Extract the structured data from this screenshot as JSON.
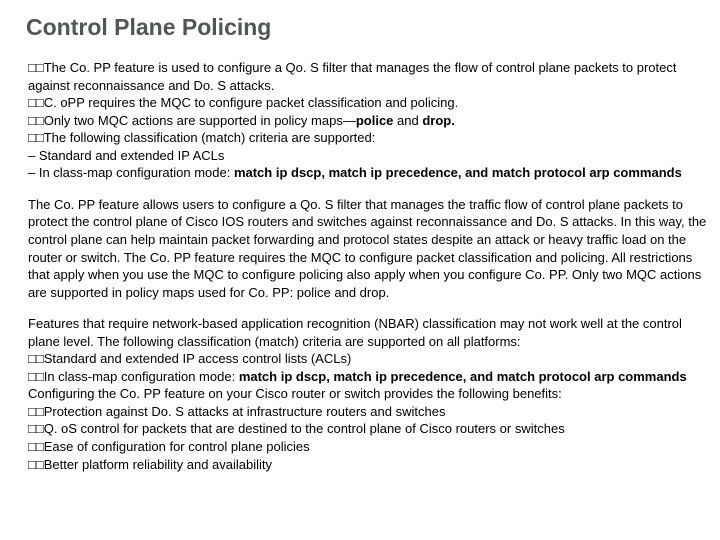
{
  "title": "Control Plane Policing",
  "section1": {
    "l1a": "□□The Co. PP feature is used to configure a Qo. S filter that manages the flow of control plane packets to protect",
    "l1b": "against reconnaissance and Do. S attacks.",
    "l2": "□□C. oPP requires the MQC to configure packet classification and policing.",
    "l3a": "□□Only two MQC actions are supported in policy maps—",
    "l3b": "police",
    "l3c": " and ",
    "l3d": "drop.",
    "l4": "□□The following classification (match) criteria are supported:",
    "l5": "– Standard and extended IP ACLs",
    "l6a": "– In class-map configuration mode: ",
    "l6b": "match ip dscp, match ip precedence, and match protocol arp commands"
  },
  "section2": {
    "p": "The Co. PP feature allows users to configure a Qo. S filter that manages the traffic flow of control plane packets to protect the control plane of Cisco IOS routers and switches against reconnaissance and Do. S attacks. In this way, the control plane can help maintain packet forwarding and protocol states despite an attack or heavy traffic load on the router or switch. The Co. PP feature requires the MQC to configure packet classification and policing. All restrictions that apply when you use the MQC to configure policing also apply when you configure Co. PP. Only two MQC actions are supported in policy maps used for Co. PP: police and drop."
  },
  "section3": {
    "l1": "Features that require network-based application recognition (NBAR) classification may not work well at the control plane level. The following classification (match) criteria are supported on all platforms:",
    "l2": "□□Standard and extended IP access control lists (ACLs)",
    "l3a": "□□In class-map configuration mode: ",
    "l3b": "match ip dscp, match ip precedence, and match protocol arp commands",
    "l4": "Configuring the Co. PP feature on your Cisco router or switch provides the following benefits:",
    "l5": "□□Protection against Do. S attacks at infrastructure routers and switches",
    "l6": "□□Q. oS control for packets that are destined to the control plane of Cisco routers or switches",
    "l7": "□□Ease of configuration for control plane policies",
    "l8": "□□Better platform reliability and availability"
  }
}
